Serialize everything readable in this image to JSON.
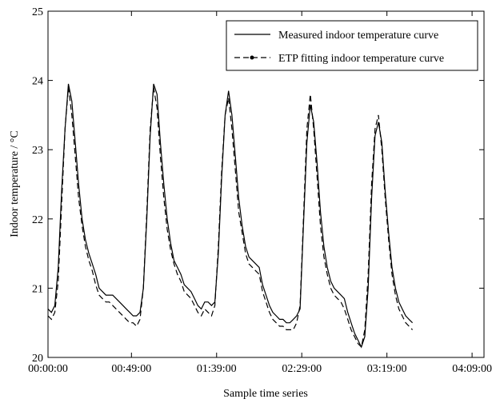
{
  "chart_data": {
    "type": "line",
    "title": "",
    "xlabel": "Sample time series",
    "ylabel": "Indoor temperature / °C",
    "x_tick_labels": [
      "00:00:00",
      "00:49:00",
      "01:39:00",
      "02:29:00",
      "03:19:00",
      "04:09:00"
    ],
    "x_tick_minutes": [
      0,
      49,
      99,
      149,
      199,
      249
    ],
    "xlim_minutes": [
      0,
      256
    ],
    "ylim": [
      20,
      25
    ],
    "y_ticks": [
      20,
      21,
      22,
      23,
      24,
      25
    ],
    "legend_position": "top-right",
    "grid": false,
    "series": [
      {
        "name": "Measured indoor temperature curve",
        "style": "solid",
        "color": "#000000",
        "points": [
          [
            0,
            20.7
          ],
          [
            2,
            20.65
          ],
          [
            4,
            20.75
          ],
          [
            6,
            21.3
          ],
          [
            8,
            22.4
          ],
          [
            10,
            23.3
          ],
          [
            12,
            23.95
          ],
          [
            14,
            23.7
          ],
          [
            16,
            23.1
          ],
          [
            18,
            22.5
          ],
          [
            20,
            22.0
          ],
          [
            22,
            21.7
          ],
          [
            24,
            21.5
          ],
          [
            26,
            21.35
          ],
          [
            28,
            21.2
          ],
          [
            30,
            21.0
          ],
          [
            32,
            20.95
          ],
          [
            34,
            20.9
          ],
          [
            36,
            20.9
          ],
          [
            38,
            20.9
          ],
          [
            40,
            20.85
          ],
          [
            42,
            20.8
          ],
          [
            44,
            20.75
          ],
          [
            46,
            20.7
          ],
          [
            48,
            20.65
          ],
          [
            50,
            20.6
          ],
          [
            52,
            20.6
          ],
          [
            54,
            20.65
          ],
          [
            56,
            21.0
          ],
          [
            58,
            22.0
          ],
          [
            60,
            23.2
          ],
          [
            62,
            23.95
          ],
          [
            64,
            23.8
          ],
          [
            66,
            23.1
          ],
          [
            68,
            22.5
          ],
          [
            70,
            22.0
          ],
          [
            72,
            21.65
          ],
          [
            74,
            21.4
          ],
          [
            76,
            21.3
          ],
          [
            78,
            21.2
          ],
          [
            80,
            21.05
          ],
          [
            82,
            21.0
          ],
          [
            84,
            20.95
          ],
          [
            86,
            20.85
          ],
          [
            88,
            20.75
          ],
          [
            90,
            20.7
          ],
          [
            92,
            20.8
          ],
          [
            94,
            20.8
          ],
          [
            96,
            20.75
          ],
          [
            98,
            20.8
          ],
          [
            100,
            21.5
          ],
          [
            102,
            22.6
          ],
          [
            104,
            23.5
          ],
          [
            106,
            23.85
          ],
          [
            108,
            23.5
          ],
          [
            110,
            22.9
          ],
          [
            112,
            22.3
          ],
          [
            114,
            21.9
          ],
          [
            116,
            21.6
          ],
          [
            118,
            21.45
          ],
          [
            120,
            21.4
          ],
          [
            122,
            21.35
          ],
          [
            124,
            21.3
          ],
          [
            126,
            21.05
          ],
          [
            128,
            20.9
          ],
          [
            130,
            20.75
          ],
          [
            132,
            20.65
          ],
          [
            134,
            20.6
          ],
          [
            136,
            20.55
          ],
          [
            138,
            20.55
          ],
          [
            140,
            20.5
          ],
          [
            142,
            20.5
          ],
          [
            144,
            20.55
          ],
          [
            146,
            20.6
          ],
          [
            148,
            20.7
          ],
          [
            150,
            21.9
          ],
          [
            152,
            23.1
          ],
          [
            154,
            23.65
          ],
          [
            156,
            23.4
          ],
          [
            158,
            22.8
          ],
          [
            160,
            22.1
          ],
          [
            162,
            21.6
          ],
          [
            164,
            21.3
          ],
          [
            166,
            21.1
          ],
          [
            168,
            21.0
          ],
          [
            170,
            20.95
          ],
          [
            172,
            20.9
          ],
          [
            174,
            20.85
          ],
          [
            176,
            20.65
          ],
          [
            178,
            20.5
          ],
          [
            180,
            20.35
          ],
          [
            182,
            20.25
          ],
          [
            184,
            20.15
          ],
          [
            186,
            20.3
          ],
          [
            188,
            21.0
          ],
          [
            190,
            22.3
          ],
          [
            192,
            23.2
          ],
          [
            194,
            23.4
          ],
          [
            196,
            23.1
          ],
          [
            198,
            22.4
          ],
          [
            200,
            21.8
          ],
          [
            202,
            21.3
          ],
          [
            204,
            21.0
          ],
          [
            206,
            20.8
          ],
          [
            208,
            20.7
          ],
          [
            210,
            20.6
          ],
          [
            212,
            20.55
          ],
          [
            214,
            20.5
          ]
        ]
      },
      {
        "name": "ETP fitting indoor temperature curve",
        "style": "dashed",
        "color": "#000000",
        "points": [
          [
            0,
            20.6
          ],
          [
            2,
            20.55
          ],
          [
            4,
            20.65
          ],
          [
            6,
            21.1
          ],
          [
            8,
            22.2
          ],
          [
            10,
            23.3
          ],
          [
            12,
            23.9
          ],
          [
            14,
            23.5
          ],
          [
            16,
            22.9
          ],
          [
            18,
            22.3
          ],
          [
            20,
            21.9
          ],
          [
            22,
            21.6
          ],
          [
            24,
            21.4
          ],
          [
            26,
            21.25
          ],
          [
            28,
            21.05
          ],
          [
            30,
            20.9
          ],
          [
            32,
            20.85
          ],
          [
            34,
            20.8
          ],
          [
            36,
            20.8
          ],
          [
            38,
            20.75
          ],
          [
            40,
            20.7
          ],
          [
            42,
            20.65
          ],
          [
            44,
            20.6
          ],
          [
            46,
            20.55
          ],
          [
            48,
            20.5
          ],
          [
            50,
            20.5
          ],
          [
            52,
            20.45
          ],
          [
            54,
            20.55
          ],
          [
            56,
            21.0
          ],
          [
            58,
            22.1
          ],
          [
            60,
            23.3
          ],
          [
            62,
            23.9
          ],
          [
            64,
            23.6
          ],
          [
            66,
            22.9
          ],
          [
            68,
            22.3
          ],
          [
            70,
            21.85
          ],
          [
            72,
            21.55
          ],
          [
            74,
            21.35
          ],
          [
            76,
            21.2
          ],
          [
            78,
            21.1
          ],
          [
            80,
            20.95
          ],
          [
            82,
            20.9
          ],
          [
            84,
            20.85
          ],
          [
            86,
            20.75
          ],
          [
            88,
            20.65
          ],
          [
            90,
            20.6
          ],
          [
            92,
            20.7
          ],
          [
            94,
            20.65
          ],
          [
            96,
            20.6
          ],
          [
            98,
            20.75
          ],
          [
            100,
            21.6
          ],
          [
            102,
            22.7
          ],
          [
            104,
            23.5
          ],
          [
            106,
            23.75
          ],
          [
            108,
            23.3
          ],
          [
            110,
            22.7
          ],
          [
            112,
            22.1
          ],
          [
            114,
            21.8
          ],
          [
            116,
            21.5
          ],
          [
            118,
            21.35
          ],
          [
            120,
            21.3
          ],
          [
            122,
            21.25
          ],
          [
            124,
            21.2
          ],
          [
            126,
            20.95
          ],
          [
            128,
            20.8
          ],
          [
            130,
            20.65
          ],
          [
            132,
            20.55
          ],
          [
            134,
            20.5
          ],
          [
            136,
            20.45
          ],
          [
            138,
            20.45
          ],
          [
            140,
            20.4
          ],
          [
            142,
            20.4
          ],
          [
            144,
            20.4
          ],
          [
            146,
            20.5
          ],
          [
            148,
            20.75
          ],
          [
            150,
            22.0
          ],
          [
            152,
            23.3
          ],
          [
            154,
            23.8
          ],
          [
            156,
            23.3
          ],
          [
            158,
            22.6
          ],
          [
            160,
            21.9
          ],
          [
            162,
            21.45
          ],
          [
            164,
            21.2
          ],
          [
            166,
            21.0
          ],
          [
            168,
            20.9
          ],
          [
            170,
            20.85
          ],
          [
            172,
            20.8
          ],
          [
            174,
            20.7
          ],
          [
            176,
            20.55
          ],
          [
            178,
            20.4
          ],
          [
            180,
            20.3
          ],
          [
            182,
            20.2
          ],
          [
            184,
            20.15
          ],
          [
            186,
            20.4
          ],
          [
            188,
            21.2
          ],
          [
            190,
            22.5
          ],
          [
            192,
            23.3
          ],
          [
            194,
            23.5
          ],
          [
            196,
            23.0
          ],
          [
            198,
            22.3
          ],
          [
            200,
            21.7
          ],
          [
            202,
            21.2
          ],
          [
            204,
            20.9
          ],
          [
            206,
            20.7
          ],
          [
            208,
            20.6
          ],
          [
            210,
            20.5
          ],
          [
            212,
            20.45
          ],
          [
            214,
            20.4
          ]
        ]
      }
    ]
  }
}
